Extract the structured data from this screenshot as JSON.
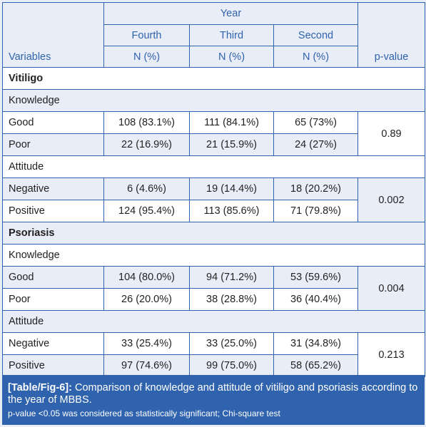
{
  "header": {
    "group_label": "Year",
    "col_fourth": "Fourth",
    "col_third": "Third",
    "col_second": "Second",
    "variables_label": "Variables",
    "unit_fourth": "N (%)",
    "unit_third": "N (%)",
    "unit_second": "N (%)",
    "pvalue_label": "p-value"
  },
  "sections": {
    "vitiligo": {
      "title": "Vitiligo",
      "knowledge_label": "Knowledge",
      "k_good": {
        "label": "Good",
        "fourth": "108 (83.1%)",
        "third": "111 (84.1%)",
        "second": "65 (73%)"
      },
      "k_poor": {
        "label": "Poor",
        "fourth": "22 (16.9%)",
        "third": "21 (15.9%)",
        "second": "24 (27%)"
      },
      "k_p": "0.89",
      "attitude_label": "Attitude",
      "a_neg": {
        "label": "Negative",
        "fourth": "6 (4.6%)",
        "third": "19 (14.4%)",
        "second": "18 (20.2%)"
      },
      "a_pos": {
        "label": "Positive",
        "fourth": "124 (95.4%)",
        "third": "113 (85.6%)",
        "second": "71 (79.8%)"
      },
      "a_p": "0.002"
    },
    "psoriasis": {
      "title": "Psoriasis",
      "knowledge_label": "Knowledge",
      "k_good": {
        "label": "Good",
        "fourth": "104 (80.0%)",
        "third": "94 (71.2%)",
        "second": "53 (59.6%)"
      },
      "k_poor": {
        "label": "Poor",
        "fourth": "26 (20.0%)",
        "third": "38 (28.8%)",
        "second": "36 (40.4%)"
      },
      "k_p": "0.004",
      "attitude_label": "Attitude",
      "a_neg": {
        "label": "Negative",
        "fourth": "33 (25.4%)",
        "third": "33 (25.0%)",
        "second": "31 (34.8%)"
      },
      "a_pos": {
        "label": "Positive",
        "fourth": "97 (74.6%)",
        "third": "99 (75.0%)",
        "second": "58 (65.2%)"
      },
      "a_p": "0.213"
    }
  },
  "caption": {
    "tag": "[Table/Fig-6]:",
    "text": " Comparison of knowledge and attitude of vitiligo and psoriasis according to the year of MBBS.",
    "note": "p-value <0.05 was considered as statistically significant; Chi-square test"
  },
  "colors": {
    "accent": "#2f63ad",
    "stripe": "#e9edf7"
  }
}
